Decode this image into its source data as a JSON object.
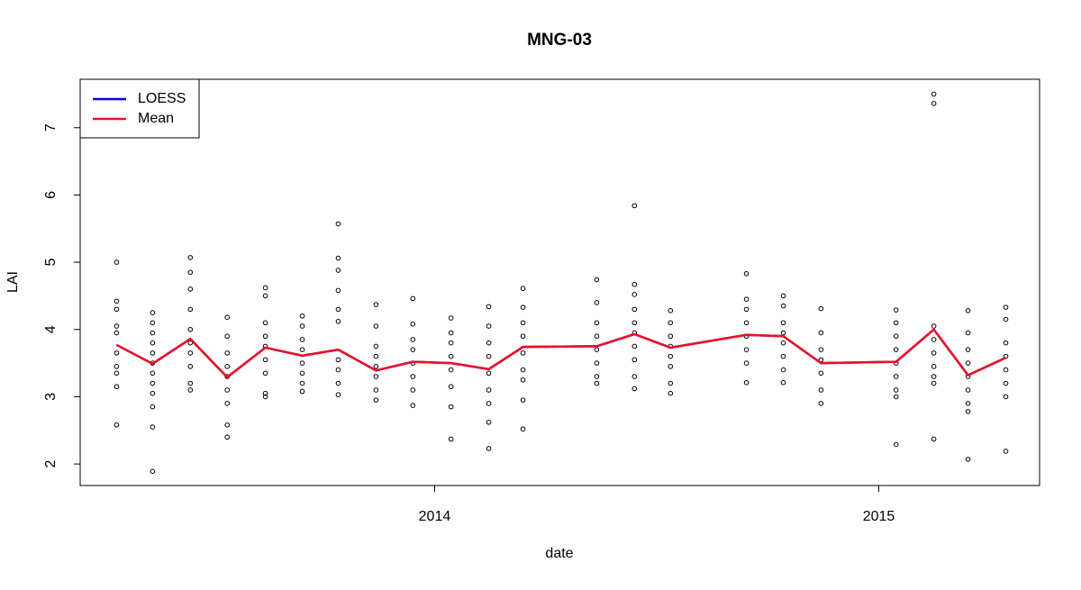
{
  "chart_data": {
    "type": "scatter",
    "title": "MNG-03",
    "x_label": "date",
    "y_label": "LAI",
    "x": [
      2013.284,
      2013.365,
      2013.45,
      2013.533,
      2013.619,
      2013.702,
      2013.783,
      2013.868,
      2013.951,
      2014.037,
      2014.122,
      2014.199,
      2014.365,
      2014.45,
      2014.531,
      2014.702,
      2014.785,
      2014.87,
      2015.039,
      2015.124,
      2015.201,
      2015.286
    ],
    "points": [
      [
        5.0,
        4.42,
        4.3,
        4.05,
        3.95,
        3.65,
        3.45,
        3.35,
        3.15,
        2.58
      ],
      [
        4.25,
        4.1,
        3.95,
        3.8,
        3.65,
        3.5,
        3.35,
        3.2,
        3.05,
        2.85,
        2.55,
        1.89
      ],
      [
        5.07,
        4.85,
        4.6,
        4.3,
        4.0,
        3.8,
        3.65,
        3.45,
        3.2,
        3.1
      ],
      [
        4.18,
        3.9,
        3.65,
        3.45,
        3.3,
        3.1,
        2.9,
        2.58,
        2.4
      ],
      [
        4.62,
        4.5,
        4.1,
        3.9,
        3.75,
        3.55,
        3.35,
        3.05,
        3.0
      ],
      [
        4.2,
        4.05,
        3.85,
        3.7,
        3.5,
        3.35,
        3.2,
        3.08
      ],
      [
        5.57,
        5.06,
        4.88,
        4.58,
        4.3,
        4.12,
        3.55,
        3.4,
        3.2,
        3.03
      ],
      [
        4.37,
        4.05,
        3.75,
        3.6,
        3.45,
        3.3,
        3.1,
        2.95
      ],
      [
        4.46,
        4.08,
        3.85,
        3.7,
        3.5,
        3.3,
        3.1,
        2.87
      ],
      [
        4.17,
        3.95,
        3.8,
        3.6,
        3.4,
        3.15,
        2.85,
        2.37
      ],
      [
        4.34,
        4.05,
        3.8,
        3.6,
        3.35,
        3.1,
        2.9,
        2.62,
        2.23
      ],
      [
        4.61,
        4.33,
        4.1,
        3.9,
        3.65,
        3.4,
        3.25,
        2.95,
        2.52
      ],
      [
        4.74,
        4.4,
        4.1,
        3.9,
        3.7,
        3.5,
        3.3,
        3.2
      ],
      [
        5.84,
        4.67,
        4.52,
        4.3,
        4.1,
        3.95,
        3.75,
        3.55,
        3.3,
        3.12
      ],
      [
        4.28,
        4.1,
        3.9,
        3.75,
        3.6,
        3.45,
        3.2,
        3.05
      ],
      [
        4.83,
        4.45,
        4.3,
        4.1,
        3.9,
        3.7,
        3.5,
        3.21
      ],
      [
        4.5,
        4.35,
        4.1,
        3.95,
        3.8,
        3.6,
        3.4,
        3.21
      ],
      [
        4.31,
        3.95,
        3.7,
        3.55,
        3.35,
        3.1,
        2.9
      ],
      [
        4.29,
        4.1,
        3.9,
        3.7,
        3.5,
        3.3,
        3.1,
        3.0,
        2.29
      ],
      [
        7.5,
        7.36,
        4.05,
        3.85,
        3.65,
        3.45,
        3.3,
        3.2,
        2.37
      ],
      [
        4.28,
        3.95,
        3.7,
        3.5,
        3.3,
        3.1,
        2.9,
        2.78,
        2.07
      ],
      [
        4.33,
        4.15,
        3.8,
        3.6,
        3.4,
        3.2,
        3.0,
        2.19
      ]
    ],
    "series": [
      {
        "name": "LOESS",
        "color": "#0000ff",
        "values": [
          3.77,
          3.49,
          3.86,
          3.29,
          3.73,
          3.61,
          3.7,
          3.39,
          3.52,
          3.5,
          3.41,
          3.74,
          3.75,
          3.93,
          3.73,
          3.92,
          3.9,
          3.5,
          3.52,
          4.0,
          3.32,
          3.58
        ]
      },
      {
        "name": "Mean",
        "color": "#ee1122",
        "values": [
          3.77,
          3.49,
          3.86,
          3.29,
          3.73,
          3.61,
          3.7,
          3.39,
          3.52,
          3.5,
          3.41,
          3.74,
          3.75,
          3.93,
          3.73,
          3.92,
          3.9,
          3.5,
          3.52,
          4.0,
          3.32,
          3.58
        ]
      }
    ],
    "xlim": [
      2013.202,
      2015.362
    ],
    "xticks": [
      2014,
      2015
    ],
    "ylim": [
      1.68,
      7.72
    ],
    "yticks": [
      2,
      3,
      4,
      5,
      6,
      7
    ],
    "legend": "topleft"
  }
}
